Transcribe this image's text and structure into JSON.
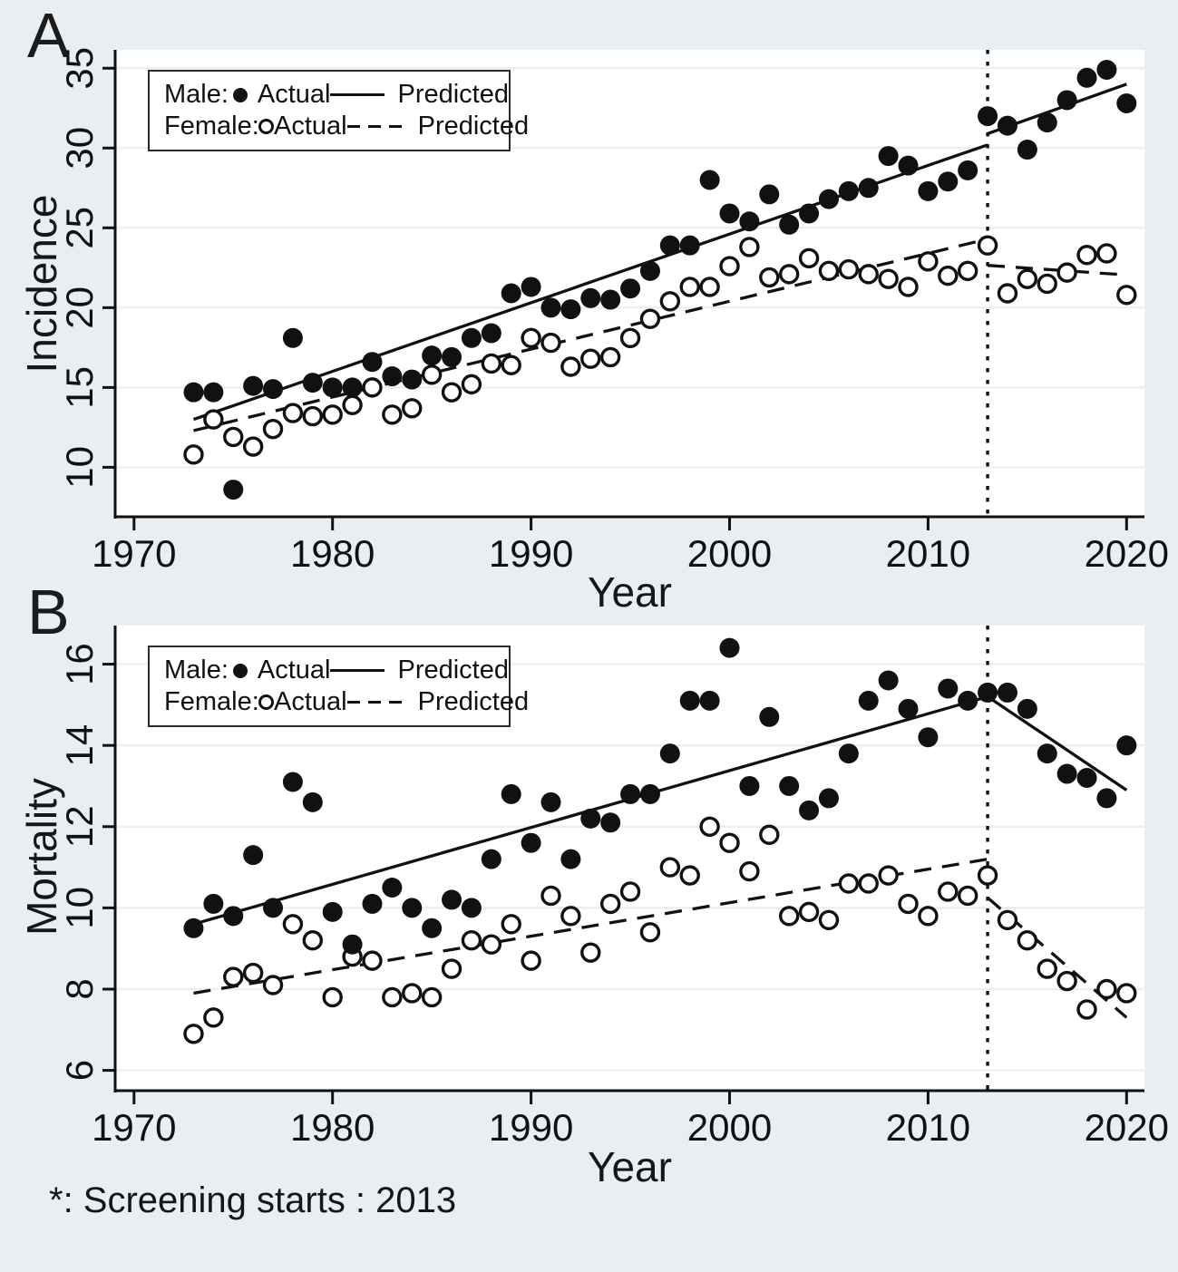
{
  "page": {
    "background": "#e8eef1",
    "footnote": "*: Screening starts : 2013",
    "ink_color": "#111111",
    "grid_color": "#edefe9",
    "plot_background": "#ffffff"
  },
  "panels": [
    {
      "label": "A",
      "ylabel": "Incidence",
      "xlabel": "Year",
      "legend": {
        "rows": [
          {
            "group": "Male:",
            "marker": "filled-circle",
            "actual": "Actual",
            "line": "solid",
            "predicted": "Predicted"
          },
          {
            "group": "Female:",
            "marker": "open-circle",
            "actual": "Actual",
            "line": "dashed",
            "predicted": "Predicted"
          }
        ]
      }
    },
    {
      "label": "B",
      "ylabel": "Mortality",
      "xlabel": "Year",
      "legend": {
        "rows": [
          {
            "group": "Male:",
            "marker": "filled-circle",
            "actual": "Actual",
            "line": "solid",
            "predicted": "Predicted"
          },
          {
            "group": "Female:",
            "marker": "open-circle",
            "actual": "Actual",
            "line": "dashed",
            "predicted": "Predicted"
          }
        ]
      }
    }
  ],
  "chart_data": [
    {
      "type": "scatter",
      "title": "A",
      "xlabel": "Year",
      "ylabel": "Incidence",
      "xlim": [
        1969.05,
        2020.9
      ],
      "ylim": [
        6.9,
        36.15
      ],
      "xticks": [
        1970,
        1980,
        1990,
        2000,
        2010,
        2020
      ],
      "yticks": [
        10,
        15,
        20,
        25,
        30,
        35
      ],
      "grid": true,
      "legend_position": "top-left",
      "screening_line_x": 2013,
      "x": [
        1973,
        1974,
        1975,
        1976,
        1977,
        1978,
        1979,
        1980,
        1981,
        1982,
        1983,
        1984,
        1985,
        1986,
        1987,
        1988,
        1989,
        1990,
        1991,
        1992,
        1993,
        1994,
        1995,
        1996,
        1997,
        1998,
        1999,
        2000,
        2001,
        2002,
        2003,
        2004,
        2005,
        2006,
        2007,
        2008,
        2009,
        2010,
        2011,
        2012,
        2013,
        2014,
        2015,
        2016,
        2017,
        2018,
        2019,
        2020
      ],
      "series": [
        {
          "name": "Male Actual",
          "kind": "points",
          "marker": "filled-circle",
          "values": [
            14.7,
            14.7,
            8.6,
            15.1,
            14.9,
            18.1,
            15.3,
            15.0,
            15.0,
            16.6,
            15.7,
            15.5,
            17.0,
            16.9,
            18.1,
            18.4,
            20.9,
            21.3,
            20.0,
            19.9,
            20.6,
            20.5,
            21.2,
            22.3,
            23.9,
            23.9,
            28.0,
            25.9,
            25.4,
            27.1,
            25.2,
            25.9,
            26.8,
            27.3,
            27.5,
            29.5,
            28.9,
            27.3,
            27.9,
            28.6,
            32.0,
            31.4,
            29.9,
            31.6,
            33.0,
            34.4,
            34.9,
            32.8
          ]
        },
        {
          "name": "Female Actual",
          "kind": "points",
          "marker": "open-circle",
          "values": [
            10.8,
            13.0,
            11.9,
            11.3,
            12.4,
            13.4,
            13.2,
            13.3,
            13.9,
            15.0,
            13.3,
            13.7,
            15.8,
            14.7,
            15.2,
            16.5,
            16.4,
            18.1,
            17.8,
            16.3,
            16.8,
            16.9,
            18.1,
            19.3,
            20.4,
            21.3,
            21.3,
            22.6,
            23.8,
            21.9,
            22.1,
            23.1,
            22.3,
            22.4,
            22.1,
            21.8,
            21.3,
            22.9,
            22.0,
            22.3,
            23.9,
            20.9,
            21.8,
            21.5,
            22.2,
            23.3,
            23.4,
            20.8
          ]
        },
        {
          "name": "Male Predicted",
          "kind": "line",
          "style": "solid",
          "segments": [
            [
              [
                1973,
                13.0
              ],
              [
                2013,
                30.2
              ]
            ],
            [
              [
                2013,
                30.9
              ],
              [
                2020,
                34.0
              ]
            ]
          ]
        },
        {
          "name": "Female Predicted",
          "kind": "line",
          "style": "dashed",
          "segments": [
            [
              [
                1973,
                12.3
              ],
              [
                2013,
                24.3
              ]
            ],
            [
              [
                2013,
                22.65
              ],
              [
                2020,
                22.05
              ]
            ]
          ]
        }
      ]
    },
    {
      "type": "scatter",
      "title": "B",
      "xlabel": "Year",
      "ylabel": "Mortality",
      "xlim": [
        1969.05,
        2020.9
      ],
      "ylim": [
        5.5,
        16.95
      ],
      "xticks": [
        1970,
        1980,
        1990,
        2000,
        2010,
        2020
      ],
      "yticks": [
        6,
        8,
        10,
        12,
        14,
        16
      ],
      "grid": true,
      "legend_position": "top-left",
      "screening_line_x": 2013,
      "x": [
        1973,
        1974,
        1975,
        1976,
        1977,
        1978,
        1979,
        1980,
        1981,
        1982,
        1983,
        1984,
        1985,
        1986,
        1987,
        1988,
        1989,
        1990,
        1991,
        1992,
        1993,
        1994,
        1995,
        1996,
        1997,
        1998,
        1999,
        2000,
        2001,
        2002,
        2003,
        2004,
        2005,
        2006,
        2007,
        2008,
        2009,
        2010,
        2011,
        2012,
        2013,
        2014,
        2015,
        2016,
        2017,
        2018,
        2019,
        2020
      ],
      "series": [
        {
          "name": "Male Actual",
          "kind": "points",
          "marker": "filled-circle",
          "values": [
            9.5,
            10.1,
            9.8,
            11.3,
            10.0,
            13.1,
            12.6,
            9.9,
            9.1,
            10.1,
            10.5,
            10.0,
            9.5,
            10.2,
            10.0,
            11.2,
            12.8,
            11.6,
            12.6,
            11.2,
            12.2,
            12.1,
            12.8,
            12.8,
            13.8,
            15.1,
            15.1,
            16.4,
            13.0,
            14.7,
            13.0,
            12.4,
            12.7,
            13.8,
            15.1,
            15.6,
            14.9,
            14.2,
            15.4,
            15.1,
            15.3,
            15.3,
            14.9,
            13.8,
            13.3,
            13.2,
            12.7,
            14.0
          ]
        },
        {
          "name": "Female Actual",
          "kind": "points",
          "marker": "open-circle",
          "values": [
            6.9,
            7.3,
            8.3,
            8.4,
            8.1,
            9.6,
            9.2,
            7.8,
            8.8,
            8.7,
            7.8,
            7.9,
            7.8,
            8.5,
            9.2,
            9.1,
            9.6,
            8.7,
            10.3,
            9.8,
            8.9,
            10.1,
            10.4,
            9.4,
            11.0,
            10.8,
            12.0,
            11.6,
            10.9,
            11.8,
            9.8,
            9.9,
            9.7,
            10.6,
            10.6,
            10.8,
            10.1,
            9.8,
            10.4,
            10.3,
            10.8,
            9.7,
            9.2,
            8.5,
            8.2,
            7.5,
            8.0,
            7.9
          ]
        },
        {
          "name": "Male Predicted",
          "kind": "line",
          "style": "solid",
          "segments": [
            [
              [
                1973,
                9.6
              ],
              [
                2013,
                15.2
              ]
            ],
            [
              [
                2013,
                15.2
              ],
              [
                2020,
                12.9
              ]
            ]
          ]
        },
        {
          "name": "Female Predicted",
          "kind": "line",
          "style": "dashed",
          "segments": [
            [
              [
                1973,
                7.9
              ],
              [
                2013,
                11.2
              ]
            ],
            [
              [
                2013,
                10.25
              ],
              [
                2020,
                7.3
              ]
            ]
          ]
        }
      ]
    }
  ]
}
